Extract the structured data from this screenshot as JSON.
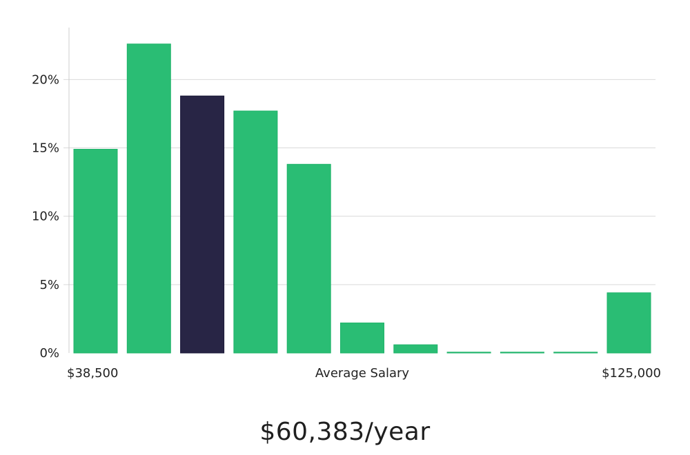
{
  "chart_data": {
    "type": "bar",
    "categories": [
      "1",
      "2",
      "3",
      "4",
      "5",
      "6",
      "7",
      "8",
      "9",
      "10",
      "11"
    ],
    "values": [
      14.9,
      22.6,
      18.8,
      17.7,
      13.8,
      2.2,
      0.6,
      0.05,
      0.05,
      0.05,
      4.4
    ],
    "highlight_index": 2,
    "ylim": [
      0,
      23.8
    ],
    "yticks": [
      0,
      5,
      10,
      15,
      20
    ],
    "ytick_labels": [
      "0%",
      "5%",
      "10%",
      "15%",
      "20%"
    ],
    "x_labels": {
      "left": "$38,500",
      "center": "Average Salary",
      "right": "$125,000"
    },
    "grid": true,
    "colors": {
      "bar": "#2abd74",
      "bar_edge": "#1fb36a",
      "highlight": "#282545",
      "grid": "#d9d9d9",
      "axis": "#cccccc"
    }
  },
  "salary": "$60,383/year"
}
